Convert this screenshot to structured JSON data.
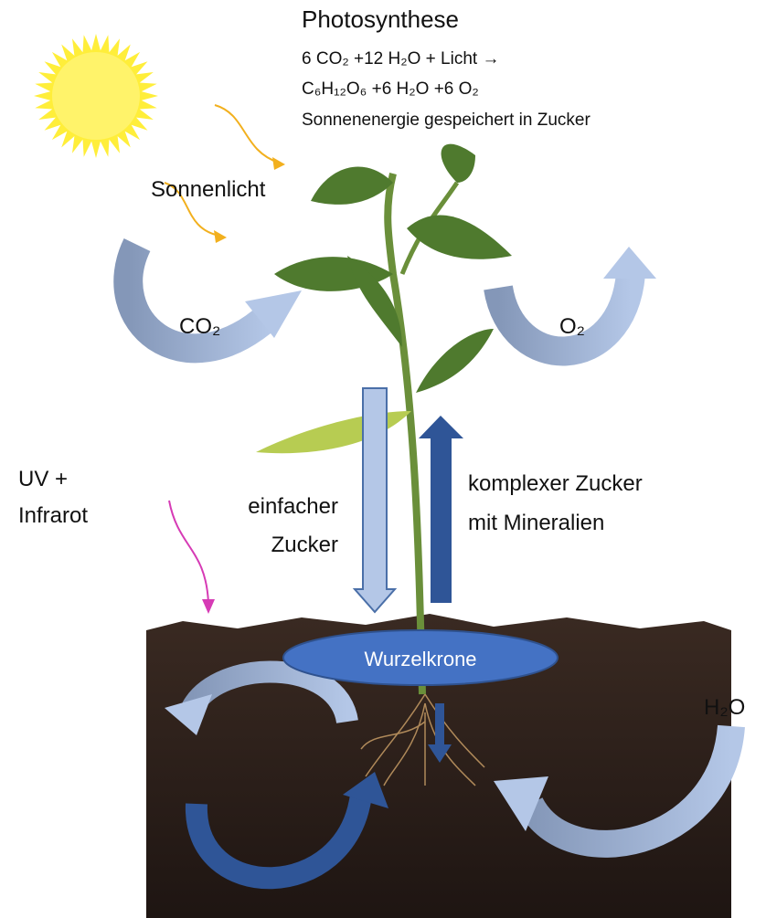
{
  "header": {
    "title": "Photosynthese",
    "lines": [
      "6 CO₂ +12 H₂O + Licht →",
      "C₆H₁₂O₆ +6 H₂O +6 O₂",
      "Sonnenenergie gespeichert in Zucker"
    ]
  },
  "labels": {
    "sunlight": "Sonnenlicht",
    "co2": "CO₂",
    "o2": "O₂",
    "uv": [
      "UV +",
      "Infrarot"
    ],
    "simple_sugar": [
      "einfacher",
      "Zucker"
    ],
    "complex_sugar": [
      "komplexer Zucker",
      "mit Mineralien"
    ],
    "root_crown": "Wurzelkrone",
    "water": "H₂O"
  }
}
